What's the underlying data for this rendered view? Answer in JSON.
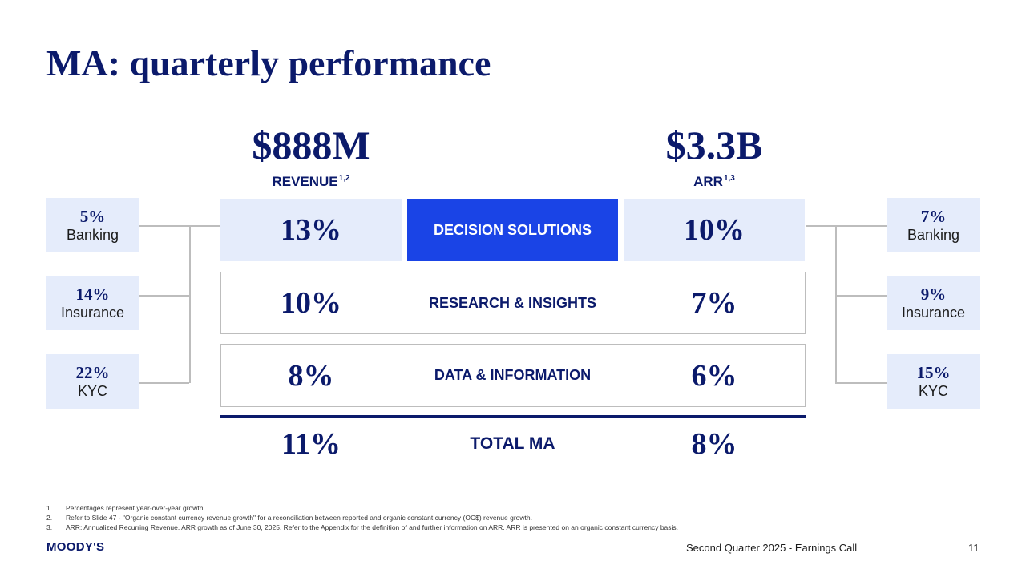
{
  "title": "MA: quarterly performance",
  "revenue": {
    "value": "$888M",
    "label": "REVENUE",
    "sup": "1,2"
  },
  "arr": {
    "value": "$3.3B",
    "label": "ARR",
    "sup": "1,3"
  },
  "segments": [
    {
      "name": "DECISION SOLUTIONS",
      "revenue_growth": "13%",
      "arr_growth": "10%"
    },
    {
      "name": "RESEARCH & INSIGHTS",
      "revenue_growth": "10%",
      "arr_growth": "7%"
    },
    {
      "name": "DATA & INFORMATION",
      "revenue_growth": "8%",
      "arr_growth": "6%"
    }
  ],
  "total": {
    "name": "TOTAL MA",
    "revenue_growth": "11%",
    "arr_growth": "8%"
  },
  "left_breakdown": [
    {
      "pct": "5%",
      "label": "Banking"
    },
    {
      "pct": "14%",
      "label": "Insurance"
    },
    {
      "pct": "22%",
      "label": "KYC"
    }
  ],
  "right_breakdown": [
    {
      "pct": "7%",
      "label": "Banking"
    },
    {
      "pct": "9%",
      "label": "Insurance"
    },
    {
      "pct": "15%",
      "label": "KYC"
    }
  ],
  "footnotes": [
    {
      "num": "1.",
      "text": "Percentages represent year-over-year growth."
    },
    {
      "num": "2.",
      "text": "Refer to Slide 47 - \"Organic constant currency revenue growth\" for a reconciliation between reported and organic constant currency (OC$) revenue growth."
    },
    {
      "num": "3.",
      "text": "ARR: Annualized Recurring Revenue. ARR growth as of  June 30, 2025. Refer to the Appendix for the definition of and further information on ARR. ARR is presented on an organic constant currency basis."
    }
  ],
  "footer": {
    "logo": "MOODY'S",
    "event": "Second Quarter 2025 - Earnings Call",
    "page": "11"
  },
  "colors": {
    "navy": "#0b1a6b",
    "highlight": "#1a44e6",
    "light_box": "#e5ecfb",
    "border": "#bdbdbd"
  }
}
